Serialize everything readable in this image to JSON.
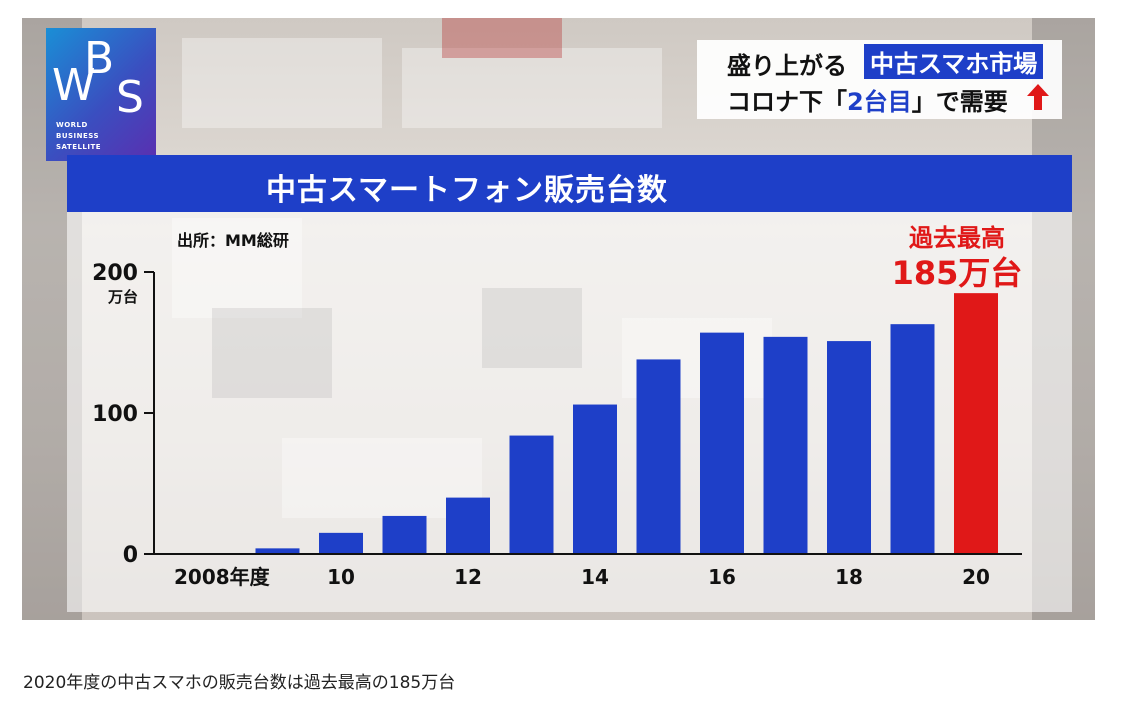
{
  "logo": {
    "letters": "WBS",
    "subtitle_lines": [
      "WORLD",
      "BUSINESS",
      "SATELLITE"
    ]
  },
  "headline": {
    "line1_prefix": "盛り上がる",
    "line1_highlight": "中古スマホ市場",
    "line2_prefix": "コロナ下「",
    "line2_highlight": "2台目",
    "line2_suffix": "」で需要",
    "arrow_icon": "up-arrow-icon",
    "arrow_color": "#e01818"
  },
  "caption": "2020年度の中古スマホの販売台数は過去最高の185万台",
  "colors": {
    "bar_blue": "#1e3fc8",
    "bar_red": "#e01818",
    "title_bar": "#1e3fc8"
  },
  "chart_data": {
    "type": "bar",
    "title": "中古スマートフォン販売台数",
    "source": "出所：MM総研",
    "ylabel_unit": "万台",
    "ylim": [
      0,
      200
    ],
    "yticks": [
      0,
      100,
      200
    ],
    "categories": [
      "2008",
      "2009",
      "2010",
      "2011",
      "2012",
      "2013",
      "2014",
      "2015",
      "2016",
      "2017",
      "2018",
      "2019",
      "2020"
    ],
    "xtick_labels": [
      "2008年度",
      "",
      "10",
      "",
      "12",
      "",
      "14",
      "",
      "16",
      "",
      "18",
      "",
      "20"
    ],
    "values": [
      0,
      4,
      15,
      27,
      40,
      84,
      106,
      138,
      157,
      154,
      151,
      163,
      185
    ],
    "highlight_index": 12,
    "annotation": {
      "line1": "過去最高",
      "line2": "185万台"
    }
  }
}
